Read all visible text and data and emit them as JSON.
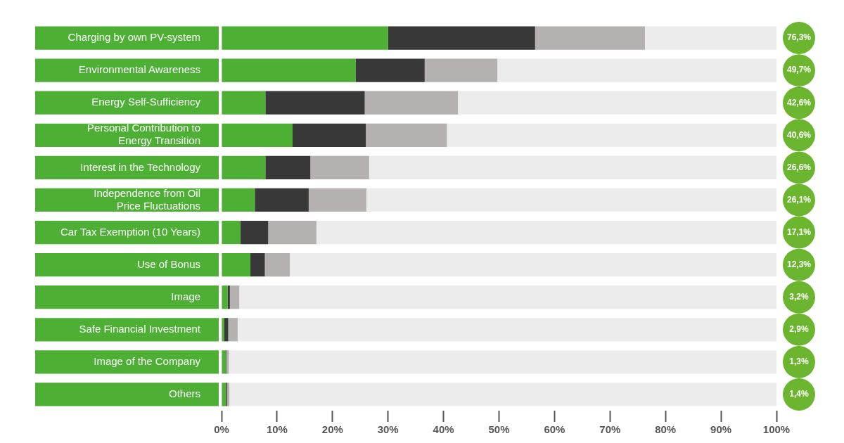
{
  "chart_data": {
    "type": "bar",
    "orientation": "horizontal",
    "stacked": true,
    "categories": [
      "Charging by own PV-system",
      "Environmental Awareness",
      "Energy Self-Sufficiency",
      "Personal Contribution to Energy Transition",
      "Interest in the Technology",
      "Independence from Oil Price Fluctuations",
      "Car Tax Exemption (10 Years)",
      "Use of Bonus",
      "Image",
      "Safe Financial Investment",
      "Image of the Company",
      "Others"
    ],
    "series": [
      {
        "color": "#4daf34",
        "values": [
          30.0,
          24.2,
          7.9,
          12.8,
          7.9,
          6.0,
          3.4,
          5.2,
          1.1,
          0.5,
          0.8,
          0.8
        ]
      },
      {
        "color": "#383838",
        "values": [
          26.5,
          12.4,
          17.9,
          13.2,
          8.1,
          9.7,
          5.0,
          2.6,
          0.4,
          0.7,
          0.1,
          0.2
        ]
      },
      {
        "color": "#b5b1b1",
        "values": [
          19.8,
          13.1,
          16.8,
          14.6,
          10.6,
          10.4,
          8.7,
          4.5,
          1.7,
          1.7,
          0.4,
          0.4
        ]
      }
    ],
    "annotations": [
      "76,3%",
      "49,7%",
      "42,6%",
      "40,6%",
      "26,6%",
      "26,1%",
      "17,1%",
      "12,3%",
      "3,2%",
      "2,9%",
      "1,3%",
      "1,4%"
    ],
    "xlim": [
      0,
      100
    ],
    "xticks": [
      {
        "value": 0,
        "label": "0%"
      },
      {
        "value": 10,
        "label": "10%"
      },
      {
        "value": 20,
        "label": "20%"
      },
      {
        "value": 30,
        "label": "30%"
      },
      {
        "value": 40,
        "label": "40%"
      },
      {
        "value": 50,
        "label": "50%"
      },
      {
        "value": 60,
        "label": "60%"
      },
      {
        "value": 70,
        "label": "70%"
      },
      {
        "value": 80,
        "label": "80%"
      },
      {
        "value": 90,
        "label": "90%"
      },
      {
        "value": 100,
        "label": "100%"
      }
    ],
    "grid": false,
    "legend": false
  }
}
